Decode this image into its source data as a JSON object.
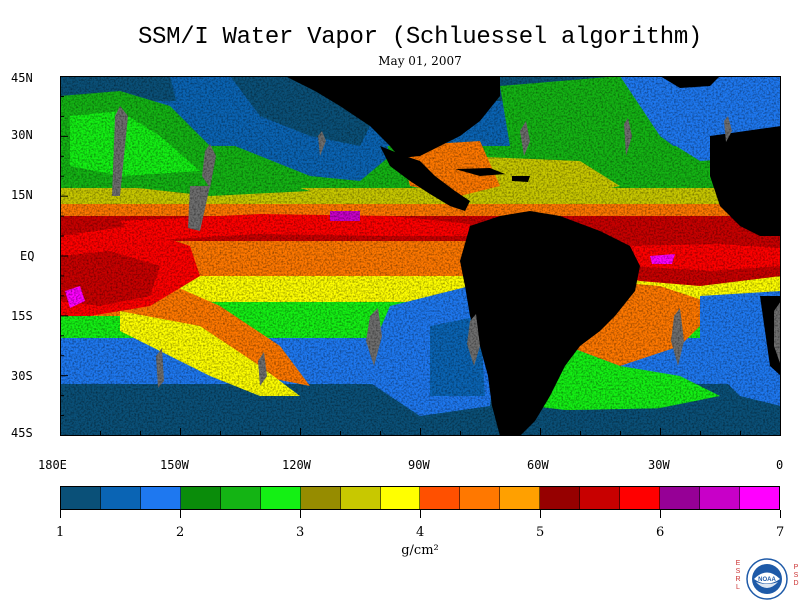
{
  "title": "SSM/I Water Vapor (Schluessel algorithm)",
  "subtitle": "May 01, 2007",
  "latitude_labels": [
    "45N",
    "30N",
    "15N",
    "EQ",
    "15S",
    "30S",
    "45S"
  ],
  "longitude_labels": [
    "180E",
    "150W",
    "120W",
    "90W",
    "60W",
    "30W",
    "0"
  ],
  "colorbar": {
    "colors": [
      "#0a5078",
      "#0a64b4",
      "#1e78f0",
      "#0a8c0a",
      "#14b414",
      "#14f014",
      "#968c00",
      "#c8c800",
      "#ffff00",
      "#ff5000",
      "#ff7800",
      "#ffa000",
      "#960000",
      "#c80000",
      "#ff0000",
      "#960096",
      "#c800c8",
      "#ff00ff"
    ],
    "tick_labels": [
      "1",
      "2",
      "3",
      "4",
      "5",
      "6",
      "7"
    ],
    "min": 1,
    "max": 7,
    "units": "g/cm²"
  },
  "map": {
    "land_color": "#000000",
    "no_data_color": "#6e6e6e",
    "lat_range": [
      -45,
      45
    ],
    "lon_range": [
      -180,
      0
    ]
  },
  "logo": {
    "left_letters": [
      "E",
      "S",
      "R",
      "L"
    ],
    "right_letters": [
      "P",
      "S",
      "D"
    ],
    "seal_text": "NOAA"
  }
}
